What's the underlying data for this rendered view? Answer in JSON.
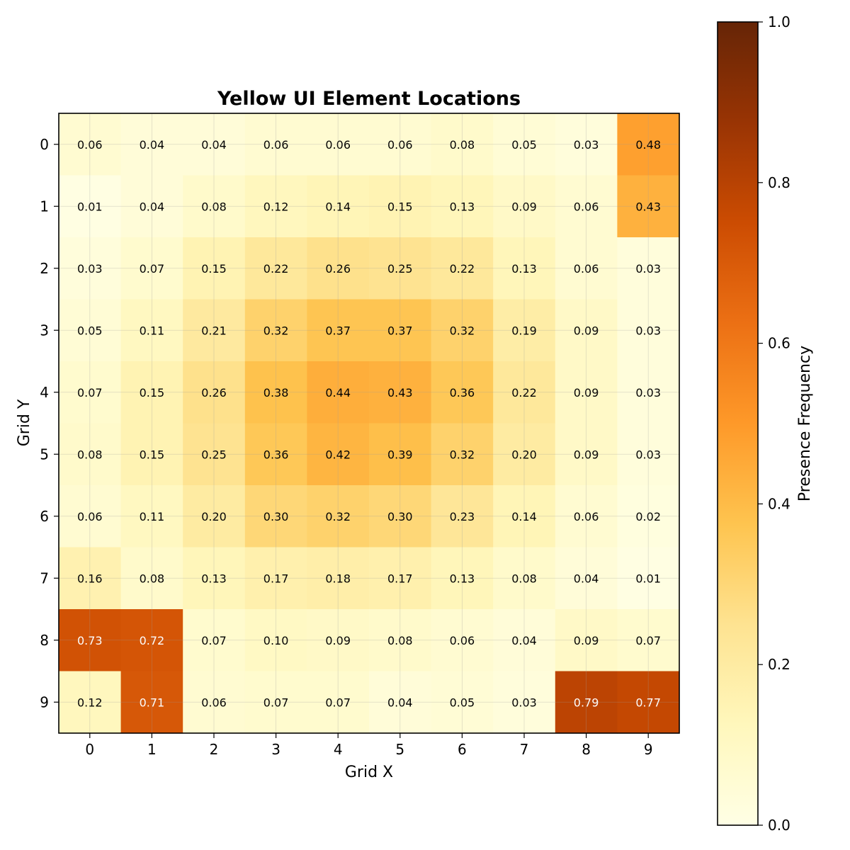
{
  "chart_data": {
    "type": "heatmap",
    "title": "Yellow UI Element Locations",
    "xlabel": "Grid X",
    "ylabel": "Grid Y",
    "x_ticks": [
      "0",
      "1",
      "2",
      "3",
      "4",
      "5",
      "6",
      "7",
      "8",
      "9"
    ],
    "y_ticks": [
      "0",
      "1",
      "2",
      "3",
      "4",
      "5",
      "6",
      "7",
      "8",
      "9"
    ],
    "values": [
      [
        0.06,
        0.04,
        0.04,
        0.06,
        0.06,
        0.06,
        0.08,
        0.05,
        0.03,
        0.48
      ],
      [
        0.01,
        0.04,
        0.08,
        0.12,
        0.14,
        0.15,
        0.13,
        0.09,
        0.06,
        0.43
      ],
      [
        0.03,
        0.07,
        0.15,
        0.22,
        0.26,
        0.25,
        0.22,
        0.13,
        0.06,
        0.03
      ],
      [
        0.05,
        0.11,
        0.21,
        0.32,
        0.37,
        0.37,
        0.32,
        0.19,
        0.09,
        0.03
      ],
      [
        0.07,
        0.15,
        0.26,
        0.38,
        0.44,
        0.43,
        0.36,
        0.22,
        0.09,
        0.03
      ],
      [
        0.08,
        0.15,
        0.25,
        0.36,
        0.42,
        0.39,
        0.32,
        0.2,
        0.09,
        0.03
      ],
      [
        0.06,
        0.11,
        0.2,
        0.3,
        0.32,
        0.3,
        0.23,
        0.14,
        0.06,
        0.02
      ],
      [
        0.16,
        0.08,
        0.13,
        0.17,
        0.18,
        0.17,
        0.13,
        0.08,
        0.04,
        0.01
      ],
      [
        0.73,
        0.72,
        0.07,
        0.1,
        0.09,
        0.08,
        0.06,
        0.04,
        0.09,
        0.07
      ],
      [
        0.12,
        0.71,
        0.06,
        0.07,
        0.07,
        0.04,
        0.05,
        0.03,
        0.79,
        0.77
      ]
    ],
    "colorbar": {
      "label": "Presence Frequency",
      "range": [
        0.0,
        1.0
      ],
      "ticks": [
        "0.0",
        "0.2",
        "0.4",
        "0.6",
        "0.8",
        "1.0"
      ],
      "colormap": "YlOrBr"
    },
    "grid": true
  }
}
